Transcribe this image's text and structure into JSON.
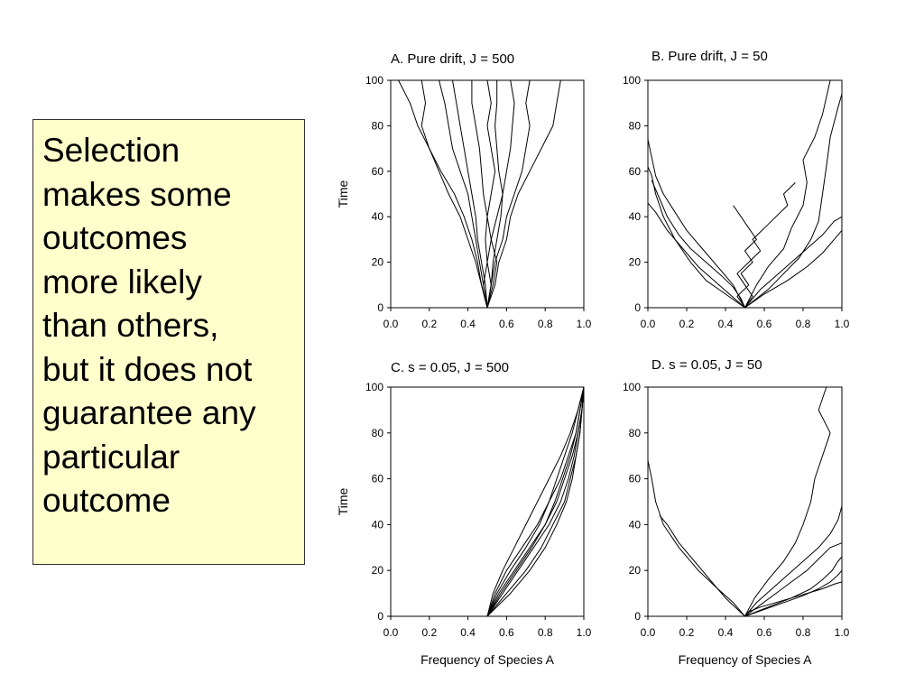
{
  "slide": {
    "note_lines": [
      "Selection",
      "makes some",
      "outcomes",
      "more likely",
      "than others,",
      "but it does not",
      "guarantee any",
      "particular",
      "outcome"
    ]
  },
  "chart_data": [
    {
      "id": "A",
      "type": "line",
      "title": "A. Pure drift, J = 500",
      "xlabel": "",
      "ylabel": "Time",
      "xlim": [
        0,
        1
      ],
      "ylim": [
        0,
        100
      ],
      "xticks": [
        "0.0",
        "0.2",
        "0.4",
        "0.6",
        "0.8",
        "1.0"
      ],
      "yticks": [
        "0",
        "20",
        "40",
        "60",
        "80",
        "100"
      ],
      "series": [
        {
          "x": [
            0.5,
            0.54,
            0.56,
            0.6,
            0.62,
            0.66,
            0.72,
            0.78,
            0.84,
            0.86,
            0.88,
            0.87,
            0.89
          ],
          "y": [
            0,
            10,
            20,
            30,
            40,
            50,
            60,
            70,
            80,
            90,
            100,
            100,
            100
          ]
        },
        {
          "x": [
            0.5,
            0.52,
            0.54,
            0.58,
            0.6,
            0.64,
            0.68,
            0.7,
            0.72,
            0.7,
            0.72
          ],
          "y": [
            0,
            10,
            20,
            30,
            40,
            50,
            60,
            70,
            80,
            90,
            100
          ]
        },
        {
          "x": [
            0.5,
            0.48,
            0.5,
            0.52,
            0.55,
            0.58,
            0.6,
            0.62,
            0.63,
            0.64,
            0.62
          ],
          "y": [
            0,
            10,
            20,
            30,
            40,
            50,
            60,
            70,
            80,
            90,
            100
          ]
        },
        {
          "x": [
            0.5,
            0.49,
            0.47,
            0.45,
            0.44,
            0.42,
            0.4,
            0.38,
            0.36,
            0.34,
            0.32
          ],
          "y": [
            0,
            10,
            20,
            30,
            40,
            50,
            60,
            70,
            80,
            90,
            100
          ]
        },
        {
          "x": [
            0.5,
            0.47,
            0.44,
            0.4,
            0.36,
            0.3,
            0.25,
            0.2,
            0.16,
            0.18,
            0.16
          ],
          "y": [
            0,
            10,
            20,
            30,
            40,
            50,
            60,
            70,
            80,
            90,
            100
          ]
        },
        {
          "x": [
            0.5,
            0.52,
            0.5,
            0.49,
            0.5,
            0.48,
            0.47,
            0.46,
            0.44,
            0.42,
            0.42
          ],
          "y": [
            0,
            10,
            20,
            30,
            40,
            50,
            60,
            70,
            80,
            90,
            100
          ]
        },
        {
          "x": [
            0.5,
            0.53,
            0.55,
            0.52,
            0.5,
            0.52,
            0.54,
            0.52,
            0.5,
            0.52,
            0.5
          ],
          "y": [
            0,
            10,
            20,
            30,
            40,
            50,
            60,
            70,
            80,
            90,
            100
          ]
        },
        {
          "x": [
            0.5,
            0.48,
            0.46,
            0.44,
            0.42,
            0.4,
            0.36,
            0.32,
            0.3,
            0.28,
            0.25
          ],
          "y": [
            0,
            10,
            20,
            30,
            40,
            50,
            60,
            70,
            80,
            90,
            100
          ]
        },
        {
          "x": [
            0.5,
            0.52,
            0.53,
            0.55,
            0.57,
            0.58,
            0.56,
            0.55,
            0.54,
            0.55,
            0.55
          ],
          "y": [
            0,
            10,
            20,
            30,
            40,
            50,
            60,
            70,
            80,
            90,
            100
          ]
        },
        {
          "x": [
            0.5,
            0.47,
            0.45,
            0.42,
            0.38,
            0.33,
            0.26,
            0.2,
            0.14,
            0.1,
            0.04
          ],
          "y": [
            0,
            10,
            20,
            30,
            40,
            50,
            60,
            70,
            80,
            90,
            100
          ]
        }
      ]
    },
    {
      "id": "B",
      "type": "line",
      "title": "B. Pure drift, J = 50",
      "xlabel": "",
      "ylabel": "",
      "xlim": [
        0,
        1
      ],
      "ylim": [
        0,
        100
      ],
      "xticks": [
        "0.0",
        "0.2",
        "0.4",
        "0.6",
        "0.8",
        "1.0"
      ],
      "yticks": [
        "0",
        "20",
        "40",
        "60",
        "80",
        "100"
      ],
      "series": [
        {
          "x": [
            0.5,
            0.62,
            0.7,
            0.78,
            0.84,
            0.88,
            0.9,
            0.92,
            0.94,
            0.98,
            1.0
          ],
          "y": [
            0,
            8,
            15,
            22,
            30,
            38,
            50,
            62,
            75,
            88,
            94
          ]
        },
        {
          "x": [
            0.5,
            0.56,
            0.62,
            0.7,
            0.74,
            0.8,
            0.82,
            0.8,
            0.86,
            0.9,
            0.94
          ],
          "y": [
            0,
            10,
            18,
            26,
            35,
            45,
            55,
            65,
            75,
            85,
            100
          ]
        },
        {
          "x": [
            0.5,
            0.44,
            0.36,
            0.28,
            0.2,
            0.14,
            0.08,
            0.04,
            0.02,
            0.0,
            0.0
          ],
          "y": [
            0,
            10,
            18,
            26,
            34,
            42,
            50,
            58,
            66,
            74,
            80
          ]
        },
        {
          "x": [
            0.5,
            0.4,
            0.3,
            0.22,
            0.14,
            0.08,
            0.04,
            0.02,
            0.0
          ],
          "y": [
            0,
            6,
            12,
            20,
            30,
            40,
            50,
            58,
            62
          ]
        },
        {
          "x": [
            0.5,
            0.6,
            0.72,
            0.82,
            0.9,
            0.96,
            1.0
          ],
          "y": [
            0,
            6,
            12,
            18,
            24,
            30,
            34
          ]
        },
        {
          "x": [
            0.5,
            0.58,
            0.66,
            0.74,
            0.82,
            0.9,
            0.96,
            1.0
          ],
          "y": [
            0,
            8,
            14,
            20,
            26,
            32,
            38,
            40
          ]
        },
        {
          "x": [
            0.5,
            0.42,
            0.34,
            0.26,
            0.18,
            0.1,
            0.04,
            0.0
          ],
          "y": [
            0,
            6,
            12,
            18,
            26,
            34,
            42,
            46
          ]
        },
        {
          "x": [
            0.5,
            0.54,
            0.5,
            0.46,
            0.52,
            0.58,
            0.54,
            0.6,
            0.66,
            0.72,
            0.7,
            0.76
          ],
          "y": [
            0,
            5,
            10,
            15,
            20,
            25,
            30,
            35,
            40,
            45,
            50,
            55
          ]
        },
        {
          "x": [
            0.5,
            0.46,
            0.52,
            0.48,
            0.54,
            0.5,
            0.56,
            0.52,
            0.48,
            0.44
          ],
          "y": [
            0,
            5,
            10,
            15,
            20,
            25,
            30,
            35,
            40,
            45
          ]
        },
        {
          "x": [
            0.5,
            0.48,
            0.44,
            0.38,
            0.3,
            0.22,
            0.16,
            0.1,
            0.06,
            0.02
          ],
          "y": [
            0,
            4,
            9,
            14,
            20,
            26,
            32,
            40,
            48,
            56
          ]
        }
      ]
    },
    {
      "id": "C",
      "type": "line",
      "title": "C. s = 0.05, J = 500",
      "xlabel": "Frequency of Species A",
      "ylabel": "Time",
      "xlim": [
        0,
        1
      ],
      "ylim": [
        0,
        100
      ],
      "xticks": [
        "0.0",
        "0.2",
        "0.4",
        "0.6",
        "0.8",
        "1.0"
      ],
      "yticks": [
        "0",
        "20",
        "40",
        "60",
        "80",
        "100"
      ],
      "series": [
        {
          "x": [
            0.5,
            0.56,
            0.64,
            0.72,
            0.8,
            0.86,
            0.9,
            0.94,
            0.97,
            0.99,
            1.0
          ],
          "y": [
            0,
            10,
            20,
            30,
            40,
            50,
            60,
            70,
            80,
            90,
            100
          ]
        },
        {
          "x": [
            0.5,
            0.58,
            0.66,
            0.74,
            0.82,
            0.88,
            0.92,
            0.95,
            0.97,
            0.99,
            1.0
          ],
          "y": [
            0,
            10,
            20,
            30,
            40,
            50,
            60,
            70,
            80,
            90,
            100
          ]
        },
        {
          "x": [
            0.5,
            0.54,
            0.6,
            0.68,
            0.76,
            0.82,
            0.88,
            0.92,
            0.96,
            0.98,
            1.0
          ],
          "y": [
            0,
            10,
            20,
            30,
            40,
            50,
            60,
            70,
            80,
            90,
            100
          ]
        },
        {
          "x": [
            0.5,
            0.6,
            0.7,
            0.78,
            0.84,
            0.9,
            0.93,
            0.96,
            0.98,
            0.99,
            1.0
          ],
          "y": [
            0,
            10,
            20,
            30,
            40,
            50,
            60,
            70,
            80,
            90,
            100
          ]
        },
        {
          "x": [
            0.5,
            0.55,
            0.62,
            0.7,
            0.77,
            0.82,
            0.86,
            0.9,
            0.94,
            0.97,
            1.0
          ],
          "y": [
            0,
            10,
            20,
            30,
            40,
            50,
            60,
            70,
            80,
            90,
            100
          ]
        },
        {
          "x": [
            0.5,
            0.57,
            0.65,
            0.73,
            0.8,
            0.85,
            0.89,
            0.93,
            0.96,
            0.98,
            1.0
          ],
          "y": [
            0,
            10,
            20,
            30,
            40,
            50,
            60,
            70,
            80,
            90,
            100
          ]
        },
        {
          "x": [
            0.5,
            0.53,
            0.58,
            0.64,
            0.7,
            0.76,
            0.82,
            0.88,
            0.93,
            0.97,
            1.0
          ],
          "y": [
            0,
            10,
            20,
            30,
            40,
            50,
            60,
            70,
            80,
            90,
            100
          ]
        },
        {
          "x": [
            0.5,
            0.62,
            0.72,
            0.8,
            0.86,
            0.91,
            0.94,
            0.96,
            0.98,
            0.99,
            1.0
          ],
          "y": [
            0,
            10,
            20,
            30,
            40,
            50,
            60,
            70,
            80,
            90,
            100
          ]
        }
      ]
    },
    {
      "id": "D",
      "type": "line",
      "title": "D. s = 0.05, J = 50",
      "xlabel": "Frequency of Species A",
      "ylabel": "",
      "xlim": [
        0,
        1
      ],
      "ylim": [
        0,
        100
      ],
      "xticks": [
        "0.0",
        "0.2",
        "0.4",
        "0.6",
        "0.8",
        "1.0"
      ],
      "yticks": [
        "0",
        "20",
        "40",
        "60",
        "80",
        "100"
      ],
      "series": [
        {
          "x": [
            0.5,
            0.62,
            0.74,
            0.84,
            0.9,
            0.95,
            0.98,
            1.0
          ],
          "y": [
            0,
            4,
            8,
            12,
            16,
            20,
            24,
            26
          ]
        },
        {
          "x": [
            0.5,
            0.58,
            0.66,
            0.74,
            0.82,
            0.88,
            0.94,
            1.0
          ],
          "y": [
            0,
            5,
            10,
            15,
            20,
            25,
            30,
            32
          ]
        },
        {
          "x": [
            0.5,
            0.55,
            0.62,
            0.7,
            0.76,
            0.8,
            0.84,
            0.86,
            0.9,
            0.94,
            0.88,
            0.92
          ],
          "y": [
            0,
            8,
            16,
            24,
            32,
            40,
            50,
            60,
            70,
            80,
            90,
            100
          ]
        },
        {
          "x": [
            0.5,
            0.44,
            0.36,
            0.26,
            0.16,
            0.08,
            0.04,
            0.02,
            0.0
          ],
          "y": [
            0,
            6,
            12,
            20,
            30,
            40,
            50,
            60,
            68
          ]
        },
        {
          "x": [
            0.5,
            0.6,
            0.7,
            0.8,
            0.88,
            0.94,
            0.98,
            1.0
          ],
          "y": [
            0,
            3,
            6,
            9,
            12,
            15,
            18,
            20
          ]
        },
        {
          "x": [
            0.5,
            0.4,
            0.32,
            0.24,
            0.16,
            0.1,
            0.06
          ],
          "y": [
            0,
            8,
            16,
            24,
            32,
            40,
            44
          ]
        },
        {
          "x": [
            0.5,
            0.56,
            0.64,
            0.72,
            0.8,
            0.88,
            0.94,
            0.98,
            1.0
          ],
          "y": [
            0,
            6,
            12,
            18,
            24,
            30,
            36,
            42,
            48
          ]
        },
        {
          "x": [
            0.5,
            0.52,
            0.58,
            0.66,
            0.74,
            0.82,
            0.9,
            0.96,
            1.0
          ],
          "y": [
            0,
            2,
            4,
            6,
            8,
            10,
            12,
            14,
            15
          ]
        }
      ]
    }
  ]
}
